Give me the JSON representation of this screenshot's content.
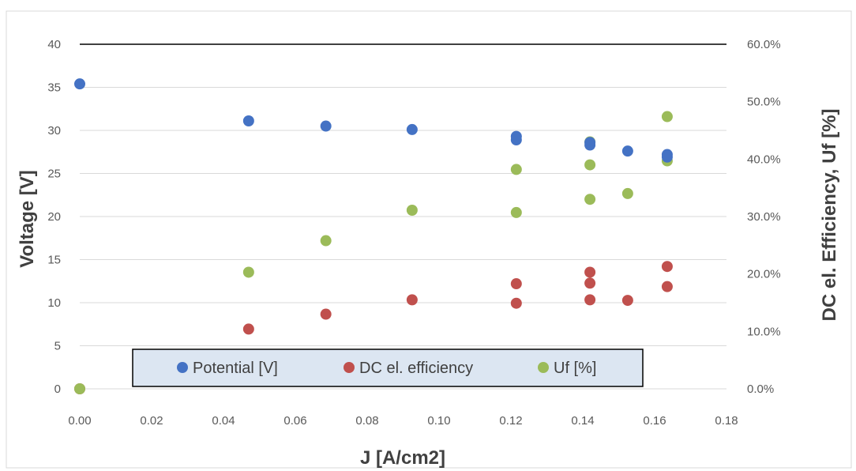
{
  "chart_data": {
    "type": "scatter",
    "xlabel": "J [A/cm2]",
    "ylabel": "Voltage [V]",
    "y2label": "DC el. Efficiency, Uf [%]",
    "xlim": [
      0,
      0.18
    ],
    "ylim": [
      0,
      40
    ],
    "y2lim": [
      0,
      0.6
    ],
    "x_ticks": [
      "0.00",
      "0.02",
      "0.04",
      "0.06",
      "0.08",
      "0.10",
      "0.12",
      "0.14",
      "0.16",
      "0.18"
    ],
    "y_ticks": [
      "0",
      "5",
      "10",
      "15",
      "20",
      "25",
      "30",
      "35",
      "40"
    ],
    "y2_ticks": [
      "0.0%",
      "10.0%",
      "20.0%",
      "30.0%",
      "40.0%",
      "50.0%",
      "60.0%"
    ],
    "grid": "horizontal",
    "legend_position": "bottom-inside",
    "series": [
      {
        "name": "Potential [V]",
        "axis": "left",
        "color": "#4472C4",
        "points": [
          [
            0.0,
            35.4
          ],
          [
            0.047,
            31.1
          ],
          [
            0.0685,
            30.5
          ],
          [
            0.0925,
            30.1
          ],
          [
            0.1215,
            29.3
          ],
          [
            0.1215,
            28.9
          ],
          [
            0.142,
            28.6
          ],
          [
            0.142,
            28.3
          ],
          [
            0.1525,
            27.6
          ],
          [
            0.1635,
            27.2
          ],
          [
            0.1635,
            26.9
          ]
        ]
      },
      {
        "name": "DC el. efficiency",
        "axis": "right",
        "color": "#C0504D",
        "points": [
          [
            0.0,
            0.0
          ],
          [
            0.047,
            0.104
          ],
          [
            0.0685,
            0.13
          ],
          [
            0.0925,
            0.155
          ],
          [
            0.1215,
            0.183
          ],
          [
            0.1215,
            0.149
          ],
          [
            0.142,
            0.203
          ],
          [
            0.142,
            0.184
          ],
          [
            0.142,
            0.155
          ],
          [
            0.1525,
            0.154
          ],
          [
            0.1635,
            0.213
          ],
          [
            0.1635,
            0.178
          ]
        ]
      },
      {
        "name": "Uf [%]",
        "axis": "right",
        "color": "#9BBB59",
        "points": [
          [
            0.0,
            0.0
          ],
          [
            0.047,
            0.203
          ],
          [
            0.0685,
            0.258
          ],
          [
            0.0925,
            0.311
          ],
          [
            0.1215,
            0.382
          ],
          [
            0.1215,
            0.307
          ],
          [
            0.142,
            0.43
          ],
          [
            0.142,
            0.39
          ],
          [
            0.142,
            0.33
          ],
          [
            0.1525,
            0.34
          ],
          [
            0.1635,
            0.474
          ],
          [
            0.1635,
            0.397
          ]
        ]
      }
    ]
  }
}
